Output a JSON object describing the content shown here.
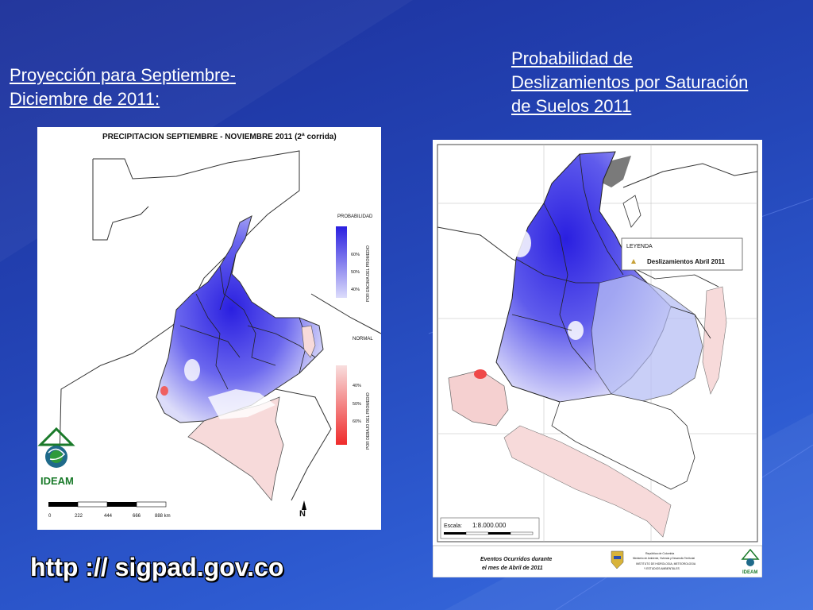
{
  "slide": {
    "title_left": "Proyección para Septiembre-Diciembre de 2011:",
    "title_right": "Probabilidad de Deslizamientos por Saturación de Suelos 2011",
    "url": "http :// sigpad.gov.co"
  },
  "map_left": {
    "heading": "PRECIPITACION  SEPTIEMBRE - NOVIEMBRE 2011 (2ª corrida)",
    "legend_probabilidad": "PROBABILIDAD",
    "legend_above_pct": [
      "60%",
      "50%",
      "40%"
    ],
    "legend_above_caption": "POR ENCIMA DEL PROMEDIO",
    "legend_normal": "NORMAL",
    "legend_below_pct": [
      "40%",
      "50%",
      "60%"
    ],
    "legend_below_caption": "POR DEBAJO DEL PROMEDIO",
    "logo_text": "IDEAM",
    "scale_ticks": [
      "0",
      "222",
      "444",
      "666",
      "888 km"
    ],
    "north": "N"
  },
  "map_right": {
    "legend_title": "LEYENDA",
    "legend_item": "Deslizamientos Abril 2011",
    "scale_label": "Escala:",
    "scale_value": "1:8.000.000",
    "footer_title_1": "Eventos Ocurridos durante",
    "footer_title_2": "el mes de Abril de 2011",
    "footer_org_1": "República de Colombia",
    "footer_org_2": "Ministerio de Ambiente, Vivienda y Desarrollo Territorial",
    "footer_org_3": "INSTITUTO DE HIDROLOGIA, METEOROLOGIA",
    "footer_org_4": "Y ESTUDIOS AMBIENTALES",
    "footer_logo": "IDEAM"
  },
  "colors": {
    "above_dark": "#2a1fe0",
    "above_light": "#c9c8f8",
    "below_light": "#f6d0d0",
    "below_dark": "#ef2b2b"
  }
}
